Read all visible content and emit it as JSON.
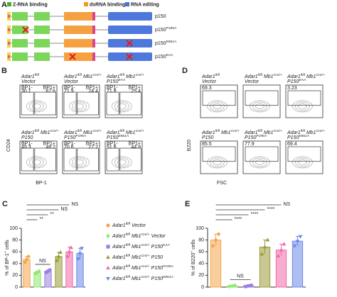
{
  "panel_a": {
    "letter": "A",
    "legend": [
      {
        "t": "Z-RNA binding",
        "color": "#4caf2a"
      },
      {
        "t": "dsRNA binding",
        "color": "#f39a1e"
      },
      {
        "t": "RNA editing",
        "color": "#4a73d6"
      }
    ],
    "constructs": [
      {
        "label": [
          {
            "t": "p150"
          }
        ]
      },
      {
        "label": [
          {
            "t": "p150"
          },
          {
            "sup": "P195A"
          }
        ]
      },
      {
        "label": [
          {
            "t": "p150"
          },
          {
            "sup": "E861A"
          }
        ]
      },
      {
        "label": [
          {
            "t": "p150"
          },
          {
            "sup": "EAA"
          }
        ]
      }
    ]
  },
  "panel_b": {
    "letter": "B",
    "y_axis": "CD24",
    "x_axis": "BP-1",
    "gate_labels": [
      "BP1-",
      "BP1+"
    ],
    "plots": [
      {
        "label": [
          [
            {
              "t": "Adar1"
            },
            {
              "sup": "fl/fl"
            }
          ],
          [
            {
              "t": "Vector"
            }
          ]
        ],
        "values": [
          30.1,
          67.6
        ]
      },
      {
        "label": [
          [
            {
              "t": "Adar1"
            },
            {
              "sup": "fl/fl"
            },
            {
              "t": "Mb1"
            },
            {
              "sup": "Cre/+"
            }
          ],
          [
            {
              "t": "Vector"
            }
          ]
        ],
        "values": [
          71.9,
          24.4
        ]
      },
      {
        "label": [
          [
            {
              "t": "Adar1"
            },
            {
              "sup": "fl/fl"
            },
            {
              "t": "Mb1"
            },
            {
              "sup": "Cre/+"
            }
          ],
          [
            {
              "t": "P150"
            },
            {
              "sup": "EAA"
            }
          ]
        ],
        "values": [
          71.8,
          25.4
        ]
      },
      {
        "label": [
          [
            {
              "t": "Adar1"
            },
            {
              "sup": "fl/fl"
            },
            {
              "t": "Mb1"
            },
            {
              "sup": "Cre/+"
            }
          ],
          [
            {
              "t": "P150"
            }
          ]
        ],
        "values": [
          49.3,
          48.2
        ]
      },
      {
        "label": [
          [
            {
              "t": "Adar1"
            },
            {
              "sup": "fl/fl"
            },
            {
              "t": "Mb1"
            },
            {
              "sup": "Cre/+"
            }
          ],
          [
            {
              "t": "P150"
            },
            {
              "sup": "P195A"
            }
          ]
        ],
        "values": [
          70.6,
          27.2
        ]
      },
      {
        "label": [
          [
            {
              "t": "Adar1"
            },
            {
              "sup": "fl/fl"
            },
            {
              "t": "Mb1"
            },
            {
              "sup": "Cre/+"
            }
          ],
          [
            {
              "t": "P150"
            },
            {
              "sup": "E861A"
            }
          ]
        ],
        "values": [
          51.6,
          44.8
        ]
      }
    ]
  },
  "panel_d": {
    "letter": "D",
    "y_axis": "B220",
    "x_axis": "FSC",
    "plots": [
      {
        "label": [
          [
            {
              "t": "Adar1"
            },
            {
              "sup": "fl/fl"
            }
          ],
          [
            {
              "t": "Vector"
            }
          ]
        ],
        "value": 69.3
      },
      {
        "label": [
          [
            {
              "t": "Adar1"
            },
            {
              "sup": "fl/fl"
            },
            {
              "t": "Mb1"
            },
            {
              "sup": "Cre/+"
            }
          ],
          [
            {
              "t": "Vector"
            }
          ]
        ]
      },
      {
        "label": [
          [
            {
              "t": "Adar1"
            },
            {
              "sup": "fl/fl"
            },
            {
              "t": "Mb1"
            },
            {
              "sup": "Cre/+"
            }
          ],
          [
            {
              "t": "P150"
            },
            {
              "sup": "EAA"
            }
          ]
        ],
        "value": 3.23
      },
      {
        "label": [
          [
            {
              "t": "Adar1"
            },
            {
              "sup": "fl/fl"
            },
            {
              "t": "Mb1"
            },
            {
              "sup": "Cre/+"
            }
          ],
          [
            {
              "t": "P150"
            }
          ]
        ],
        "value": 85.5
      },
      {
        "label": [
          [
            {
              "t": "Adar1"
            },
            {
              "sup": "fl/fl"
            },
            {
              "t": "Mb1"
            },
            {
              "sup": "Cre/+"
            }
          ],
          [
            {
              "t": "P150"
            },
            {
              "sup": "P195A"
            }
          ]
        ],
        "value": 77.9
      },
      {
        "label": [
          [
            {
              "t": "Adar1"
            },
            {
              "sup": "fl/fl"
            },
            {
              "t": "Mb1"
            },
            {
              "sup": "Cre/+"
            }
          ],
          [
            {
              "t": "P150"
            },
            {
              "sup": "E861A"
            }
          ]
        ],
        "value": 69.4
      }
    ]
  },
  "chart_data": [
    {
      "type": "bar",
      "letter": "C",
      "y_label": [
        {
          "t": "% of BP-1"
        },
        {
          "sup": "+"
        },
        {
          "t": "cells"
        }
      ],
      "categories": [
        null
      ],
      "ylim": [
        0,
        100
      ],
      "yticks": [
        0,
        20,
        40,
        60,
        80,
        100
      ],
      "brackets": [
        "NS",
        "NS",
        "**",
        "**"
      ],
      "bracket_pair": "NS",
      "series": [
        {
          "name": [
            {
              "t": "Adar1"
            },
            {
              "sup": "fl/fl"
            },
            {
              "t": "Vector"
            }
          ],
          "color": "#f5a54a",
          "marker": "circle",
          "values": [
            47
          ],
          "errors": [
            5
          ],
          "points": [
            42,
            47,
            52
          ]
        },
        {
          "name": [
            {
              "t": "Adar1"
            },
            {
              "sup": "fl/fl"
            },
            {
              "t": "Mb1"
            },
            {
              "sup": "Cre/+"
            },
            {
              "t": "Vector"
            }
          ],
          "color": "#8ee86e",
          "marker": "diamond",
          "values": [
            25
          ],
          "errors": [
            2
          ],
          "points": [
            23,
            25,
            27
          ]
        },
        {
          "name": [
            {
              "t": "Adar1"
            },
            {
              "sup": "fl/fl"
            },
            {
              "t": "Mb1"
            },
            {
              "sup": "Cre/+"
            },
            {
              "t": "P150"
            },
            {
              "sup": "EAA"
            }
          ],
          "color": "#9b7fe0",
          "marker": "square",
          "values": [
            27
          ],
          "errors": [
            2
          ],
          "points": [
            25,
            27,
            29
          ]
        },
        {
          "name": [
            {
              "t": "Adar1"
            },
            {
              "sup": "fl/fl"
            },
            {
              "t": "Mb1"
            },
            {
              "sup": "Cre/+"
            },
            {
              "t": "P150"
            }
          ],
          "color": "#9b9b3b",
          "marker": "triangle-up",
          "values": [
            52
          ],
          "errors": [
            7
          ],
          "points": [
            45,
            52,
            59
          ]
        },
        {
          "name": [
            {
              "t": "Adar1"
            },
            {
              "sup": "fl/fl"
            },
            {
              "t": "Mb1"
            },
            {
              "sup": "Cre/+"
            },
            {
              "t": "P150"
            },
            {
              "sup": "P195A"
            }
          ],
          "color": "#f06aa8",
          "marker": "triangle-up",
          "values": [
            60
          ],
          "errors": [
            8
          ],
          "points": [
            52,
            60,
            67
          ]
        },
        {
          "name": [
            {
              "t": "Adar1"
            },
            {
              "sup": "fl/fl"
            },
            {
              "t": "Mb1"
            },
            {
              "sup": "Cre/+"
            },
            {
              "t": "P150"
            },
            {
              "sup": "E861A"
            }
          ],
          "color": "#6b88e8",
          "marker": "triangle-down",
          "values": [
            57
          ],
          "errors": [
            9
          ],
          "points": [
            48,
            57,
            66
          ]
        }
      ]
    },
    {
      "type": "bar",
      "letter": "E",
      "y_label": [
        {
          "t": "% of B220"
        },
        {
          "sup": "+"
        },
        {
          "t": "cells"
        }
      ],
      "categories": [
        null
      ],
      "ylim": [
        0,
        100
      ],
      "yticks": [
        0,
        20,
        40,
        60,
        80,
        100
      ],
      "brackets": [
        "NS",
        "****",
        "****",
        "****"
      ],
      "bracket_pair": "NS",
      "series": [
        {
          "color": "#f5a54a",
          "marker": "circle",
          "values": [
            80
          ],
          "errors": [
            10
          ],
          "points": [
            70,
            80,
            90
          ]
        },
        {
          "color": "#8ee86e",
          "marker": "diamond",
          "values": [
            2
          ],
          "errors": [
            1
          ],
          "points": [
            1,
            2,
            3
          ]
        },
        {
          "color": "#9b7fe0",
          "marker": "square",
          "values": [
            2
          ],
          "errors": [
            1
          ],
          "points": [
            1,
            2,
            3
          ]
        },
        {
          "color": "#9b9b3b",
          "marker": "triangle-up",
          "values": [
            68
          ],
          "errors": [
            12
          ],
          "points": [
            56,
            68,
            80
          ]
        },
        {
          "color": "#f06aa8",
          "marker": "triangle-up",
          "values": [
            63
          ],
          "errors": [
            10
          ],
          "points": [
            53,
            63,
            73
          ]
        },
        {
          "color": "#6b88e8",
          "marker": "triangle-down",
          "values": [
            78
          ],
          "errors": [
            8
          ],
          "points": [
            70,
            78,
            86
          ]
        }
      ]
    }
  ]
}
